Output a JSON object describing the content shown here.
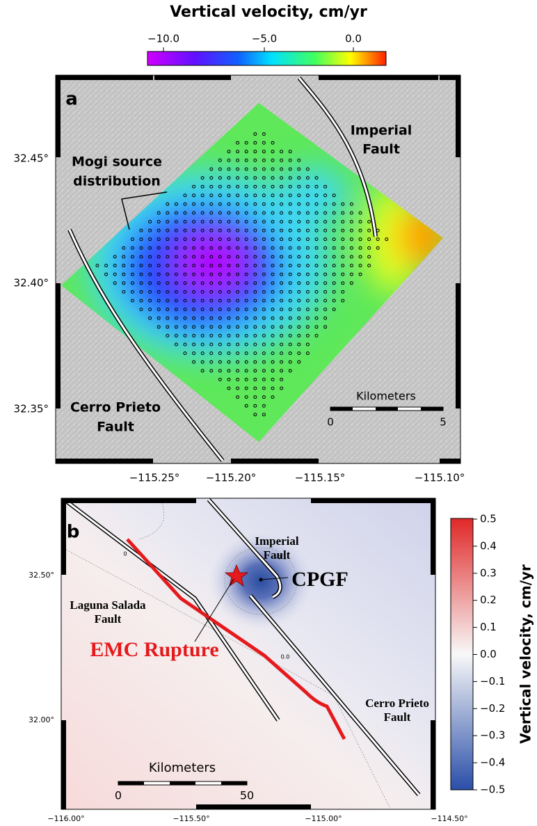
{
  "panel_a": {
    "label": "a",
    "colorbar": {
      "title": "Vertical velocity, cm/yr",
      "ticks": [
        "−10.0",
        "−5.0",
        "0.0"
      ]
    },
    "lat_ticks": [
      "32.45°",
      "32.40°",
      "32.35°"
    ],
    "lon_ticks": [
      "−115.25°",
      "−115.20°",
      "−115.15°",
      "−115.10°"
    ],
    "annotations": {
      "imperial_fault": [
        "Imperial",
        "Fault"
      ],
      "mogi": [
        "Mogi source",
        "distribution"
      ],
      "cerro_prieto_fault": [
        "Cerro Prieto",
        "Fault"
      ]
    },
    "scale_bar": {
      "title": "Kilometers",
      "ticks": [
        "0",
        "5"
      ]
    }
  },
  "panel_b": {
    "label": "b",
    "colorbar": {
      "title": "Vertical velocity, cm/yr",
      "ticks": [
        "0.5",
        "0.4",
        "0.3",
        "0.2",
        "0.1",
        "0.0",
        "−0.1",
        "−0.2",
        "−0.3",
        "−0.4",
        "−0.5"
      ]
    },
    "lat_ticks": [
      "32.50°",
      "32.00°"
    ],
    "lon_ticks": [
      "−116.00°",
      "−115.50°",
      "−115.00°",
      "−114.50°"
    ],
    "annotations": {
      "imperial_fault": [
        "Imperial",
        "Fault"
      ],
      "cpgf": "CPGF",
      "laguna_salada_fault": [
        "Laguna Salada",
        "Fault"
      ],
      "emc_rupture": "EMC Rupture",
      "cerro_prieto_fault": [
        "Cerro Prieto",
        "Fault"
      ]
    },
    "contour_labels": [
      "0",
      "-0.1",
      "0.0"
    ],
    "scale_bar": {
      "title": "Kilometers",
      "ticks": [
        "0",
        "50"
      ]
    }
  }
}
